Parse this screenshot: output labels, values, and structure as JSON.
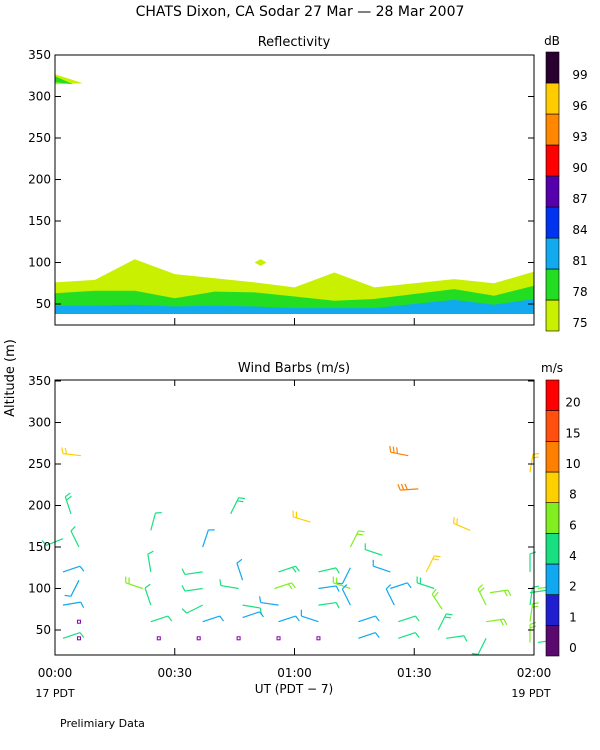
{
  "title": "CHATS Dixon, CA  Sodar  27 Mar — 28 Mar 2007",
  "ylabel": "Altitude (m)",
  "xlabel": "UT  (PDT − 7)",
  "x_left_label": "17 PDT",
  "x_right_label": "19 PDT",
  "footer": "Prelimiary Data",
  "chart_data": [
    {
      "type": "area",
      "title": "Reflectivity",
      "x_ticks": [
        "00:00",
        "00:30",
        "01:00",
        "01:30",
        "02:00"
      ],
      "x_range_minutes": [
        0,
        120
      ],
      "y_ticks": [
        50,
        100,
        150,
        200,
        250,
        300,
        350
      ],
      "ylim": [
        30,
        355
      ],
      "colorbar": {
        "unit": "dB",
        "levels": [
          75,
          78,
          81,
          84,
          87,
          90,
          93,
          96,
          99
        ],
        "colors": [
          "#c8f000",
          "#22dd22",
          "#11aaee",
          "#0033ee",
          "#5500aa",
          "#ff0000",
          "#ff8800",
          "#ffcc00",
          "#2a0030"
        ]
      },
      "layers": [
        {
          "level": 75,
          "color": "#c8f000",
          "x": [
            0,
            10,
            20,
            30,
            40,
            50,
            60,
            70,
            80,
            90,
            100,
            110,
            120
          ],
          "bottom": [
            47,
            47,
            47,
            46,
            46,
            46,
            44,
            44,
            44,
            45,
            46,
            45,
            45
          ],
          "top": [
            76,
            79,
            104,
            86,
            81,
            76,
            70,
            88,
            70,
            75,
            80,
            75,
            89
          ]
        },
        {
          "level": 78,
          "color": "#22dd22",
          "x": [
            0,
            10,
            20,
            30,
            40,
            50,
            60,
            70,
            80,
            90,
            100,
            110,
            120
          ],
          "bottom": [
            47,
            47,
            47,
            46,
            46,
            46,
            44,
            44,
            44,
            45,
            46,
            45,
            45
          ],
          "top": [
            63,
            66,
            66,
            57,
            65,
            64,
            59,
            54,
            56,
            62,
            68,
            60,
            72
          ]
        },
        {
          "level": 81,
          "color": "#11aaee",
          "x": [
            0,
            10,
            20,
            30,
            40,
            50,
            60,
            70,
            80,
            90,
            100,
            110,
            120
          ],
          "bottom": [
            38,
            38,
            38,
            38,
            38,
            38,
            38,
            38,
            38,
            38,
            38,
            38,
            38
          ],
          "top": [
            48,
            48,
            49,
            47,
            48,
            47,
            45,
            45,
            45,
            50,
            55,
            49,
            56
          ]
        }
      ],
      "blobs": [
        {
          "level": 78,
          "color": "#22dd22",
          "x": [
            0,
            7
          ],
          "y": [
            322,
            316
          ]
        },
        {
          "level": 75,
          "color": "#c8f000",
          "x": [
            50,
            53
          ],
          "y": [
            100,
            100
          ]
        }
      ]
    },
    {
      "type": "scatter",
      "title": "Wind Barbs (m/s)",
      "x_ticks": [
        "00:00",
        "00:30",
        "01:00",
        "01:30",
        "02:00"
      ],
      "x_range_minutes": [
        0,
        120
      ],
      "y_ticks": [
        50,
        100,
        150,
        200,
        250,
        300,
        350
      ],
      "ylim": [
        20,
        355
      ],
      "colorbar": {
        "unit": "m/s",
        "ticks": [
          "0",
          "1",
          "2",
          "4",
          "6",
          "8",
          "10",
          "15",
          "20"
        ],
        "colors": [
          "#5a0a6e",
          "#1f1fd0",
          "#10a8f0",
          "#18e080",
          "#80ee20",
          "#ffd000",
          "#ff8000",
          "#ff5010",
          "#ff0000"
        ]
      },
      "calm_markers": {
        "color": "#8800aa",
        "points": [
          [
            6,
            40
          ],
          [
            6,
            60
          ],
          [
            26,
            40
          ],
          [
            36,
            40
          ],
          [
            46,
            40
          ],
          [
            56,
            40
          ],
          [
            66,
            40
          ]
        ]
      },
      "barbs": [
        {
          "x": 6.5,
          "y": 260,
          "u": -3.5,
          "v": 0.4,
          "s": 9
        },
        {
          "x": 88.5,
          "y": 260,
          "u": -4,
          "v": 0.8,
          "s": 14
        },
        {
          "x": 91,
          "y": 220,
          "u": -4.5,
          "v": -0.3,
          "s": 14
        },
        {
          "x": 119,
          "y": 240,
          "u": 0.8,
          "v": 5,
          "s": 9
        },
        {
          "x": 4,
          "y": 190,
          "u": -1,
          "v": 3,
          "s": 5
        },
        {
          "x": 24,
          "y": 170,
          "u": 0.8,
          "v": 3,
          "s": 4
        },
        {
          "x": 44,
          "y": 190,
          "u": 1.5,
          "v": 3,
          "s": 5
        },
        {
          "x": 64,
          "y": 180,
          "u": -4,
          "v": 1.2,
          "s": 9
        },
        {
          "x": 104,
          "y": 170,
          "u": -3.5,
          "v": 1.5,
          "s": 9
        },
        {
          "x": 2,
          "y": 160,
          "u": -2.5,
          "v": -1,
          "s": 4
        },
        {
          "x": 6,
          "y": 150,
          "u": -1.5,
          "v": 3,
          "s": 4
        },
        {
          "x": 37,
          "y": 150,
          "u": 1,
          "v": 3,
          "s": 3
        },
        {
          "x": 74,
          "y": 150,
          "u": 1.5,
          "v": 3,
          "s": 7
        },
        {
          "x": 82,
          "y": 140,
          "u": -3,
          "v": 1,
          "s": 4
        },
        {
          "x": 93,
          "y": 120,
          "u": 1.5,
          "v": 3,
          "s": 9
        },
        {
          "x": 24,
          "y": 120,
          "u": -0.5,
          "v": 3,
          "s": 4
        },
        {
          "x": 2,
          "y": 120,
          "u": 3,
          "v": 1,
          "s": 3
        },
        {
          "x": 6,
          "y": 110,
          "u": -1.5,
          "v": -3,
          "s": 2
        },
        {
          "x": 37,
          "y": 120,
          "u": -3.5,
          "v": -0.5,
          "s": 4
        },
        {
          "x": 47,
          "y": 110,
          "u": -1,
          "v": 3,
          "s": 3
        },
        {
          "x": 56,
          "y": 120,
          "u": 3,
          "v": 1,
          "s": 5
        },
        {
          "x": 66,
          "y": 120,
          "u": 3.5,
          "v": 0.8,
          "s": 4
        },
        {
          "x": 74,
          "y": 125,
          "u": -1.5,
          "v": -3,
          "s": 2
        },
        {
          "x": 84,
          "y": 120,
          "u": -3,
          "v": 1,
          "s": 3
        },
        {
          "x": 119,
          "y": 120,
          "u": 0,
          "v": 3.5,
          "s": 4
        },
        {
          "x": 22,
          "y": 100,
          "u": -3,
          "v": 1,
          "s": 6
        },
        {
          "x": 37,
          "y": 100,
          "u": -3.5,
          "v": -0.5,
          "s": 4
        },
        {
          "x": 46,
          "y": 100,
          "u": -3,
          "v": 0.5,
          "s": 4
        },
        {
          "x": 55,
          "y": 100,
          "u": 3,
          "v": 1,
          "s": 6
        },
        {
          "x": 66,
          "y": 100,
          "u": 3.5,
          "v": 0.5,
          "s": 3
        },
        {
          "x": 74,
          "y": 100,
          "u": -3,
          "v": 1,
          "s": 6
        },
        {
          "x": 84,
          "y": 100,
          "u": 3,
          "v": 1,
          "s": 3
        },
        {
          "x": 95,
          "y": 100,
          "u": -3,
          "v": 1,
          "s": 5
        },
        {
          "x": 109,
          "y": 95,
          "u": 3.5,
          "v": 0.5,
          "s": 6
        },
        {
          "x": 119,
          "y": 95,
          "u": 3.5,
          "v": 0.5,
          "s": 4
        },
        {
          "x": 2,
          "y": 80,
          "u": 3,
          "v": 0.5,
          "s": 3
        },
        {
          "x": 24,
          "y": 80,
          "u": -1,
          "v": 3,
          "s": 4
        },
        {
          "x": 37,
          "y": 80,
          "u": -3,
          "v": -1.5,
          "s": 4
        },
        {
          "x": 47,
          "y": 80,
          "u": 3,
          "v": -0.5,
          "s": 4
        },
        {
          "x": 56,
          "y": 80,
          "u": -3.5,
          "v": 0.5,
          "s": 2
        },
        {
          "x": 66,
          "y": 80,
          "u": 3.5,
          "v": 0.5,
          "s": 4
        },
        {
          "x": 74,
          "y": 80,
          "u": -1.5,
          "v": 3,
          "s": 3
        },
        {
          "x": 85,
          "y": 80,
          "u": -1.5,
          "v": 3,
          "s": 2
        },
        {
          "x": 97,
          "y": 75,
          "u": -2,
          "v": 3,
          "s": 6
        },
        {
          "x": 108,
          "y": 80,
          "u": -1.5,
          "v": 3,
          "s": 6
        },
        {
          "x": 119,
          "y": 80,
          "u": 0.5,
          "v": 3.5,
          "s": 4
        },
        {
          "x": 24,
          "y": 60,
          "u": 3,
          "v": 1,
          "s": 4
        },
        {
          "x": 37,
          "y": 60,
          "u": 3,
          "v": 1,
          "s": 3
        },
        {
          "x": 47,
          "y": 65,
          "u": 3,
          "v": 1,
          "s": 2
        },
        {
          "x": 56,
          "y": 60,
          "u": 3,
          "v": 1,
          "s": 3
        },
        {
          "x": 66,
          "y": 60,
          "u": -3,
          "v": 1,
          "s": 3
        },
        {
          "x": 76,
          "y": 60,
          "u": 3,
          "v": 1,
          "s": 3
        },
        {
          "x": 86,
          "y": 60,
          "u": 3,
          "v": 1,
          "s": 4
        },
        {
          "x": 96,
          "y": 50,
          "u": 1.5,
          "v": 3,
          "s": 5
        },
        {
          "x": 108,
          "y": 60,
          "u": 3.5,
          "v": 0.5,
          "s": 6
        },
        {
          "x": 119,
          "y": 60,
          "u": 0.5,
          "v": 3.5,
          "s": 6
        },
        {
          "x": 2,
          "y": 40,
          "u": 3,
          "v": 1,
          "s": 4
        },
        {
          "x": 76,
          "y": 40,
          "u": 3,
          "v": 1,
          "s": 3
        },
        {
          "x": 86,
          "y": 40,
          "u": 3,
          "v": 1,
          "s": 4
        },
        {
          "x": 98,
          "y": 40,
          "u": 3.5,
          "v": 0.5,
          "s": 4
        },
        {
          "x": 108,
          "y": 40,
          "u": -1.5,
          "v": -3,
          "s": 4
        },
        {
          "x": 119,
          "y": 35,
          "u": 0,
          "v": 3.5,
          "s": 6
        },
        {
          "x": 121,
          "y": 35,
          "u": 3.5,
          "v": 0.5,
          "s": 4
        },
        {
          "x": 121,
          "y": 100,
          "u": 3.5,
          "v": 0.5,
          "s": 6
        }
      ]
    }
  ]
}
